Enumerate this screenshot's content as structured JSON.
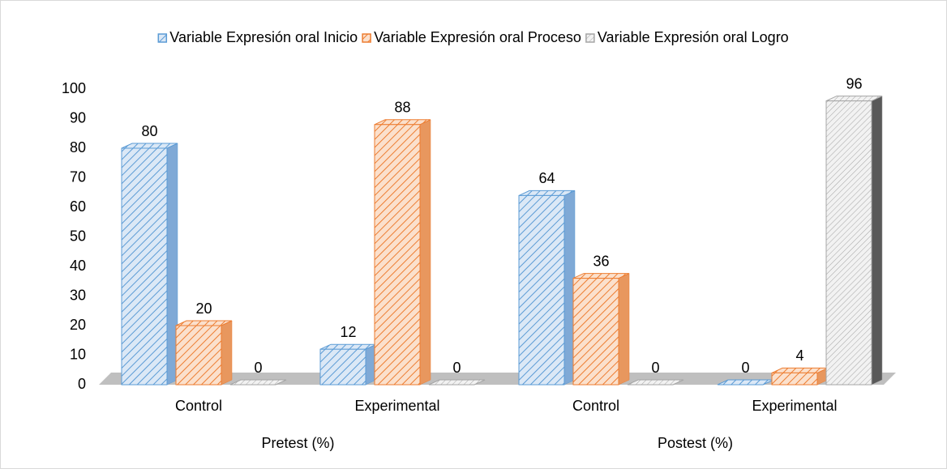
{
  "chart_data": {
    "type": "bar3d",
    "categories": [
      "Control",
      "Experimental",
      "Control",
      "Experimental"
    ],
    "groups": [
      "Pretest (%)",
      "Postest (%)"
    ],
    "series": [
      {
        "name": "Variable Expresión oral Inicio",
        "color": "#5b9bd5",
        "values": [
          80,
          12,
          64,
          0
        ]
      },
      {
        "name": "Variable Expresión oral Proceso",
        "color": "#ed7d31",
        "values": [
          20,
          88,
          36,
          4
        ]
      },
      {
        "name": "Variable Expresión oral Logro",
        "color": "#a5a5a5",
        "values": [
          0,
          0,
          0,
          96
        ]
      }
    ],
    "ylim": [
      0,
      100
    ],
    "yticks": [
      0,
      10,
      20,
      30,
      40,
      50,
      60,
      70,
      80,
      90,
      100
    ],
    "legend": "top"
  }
}
